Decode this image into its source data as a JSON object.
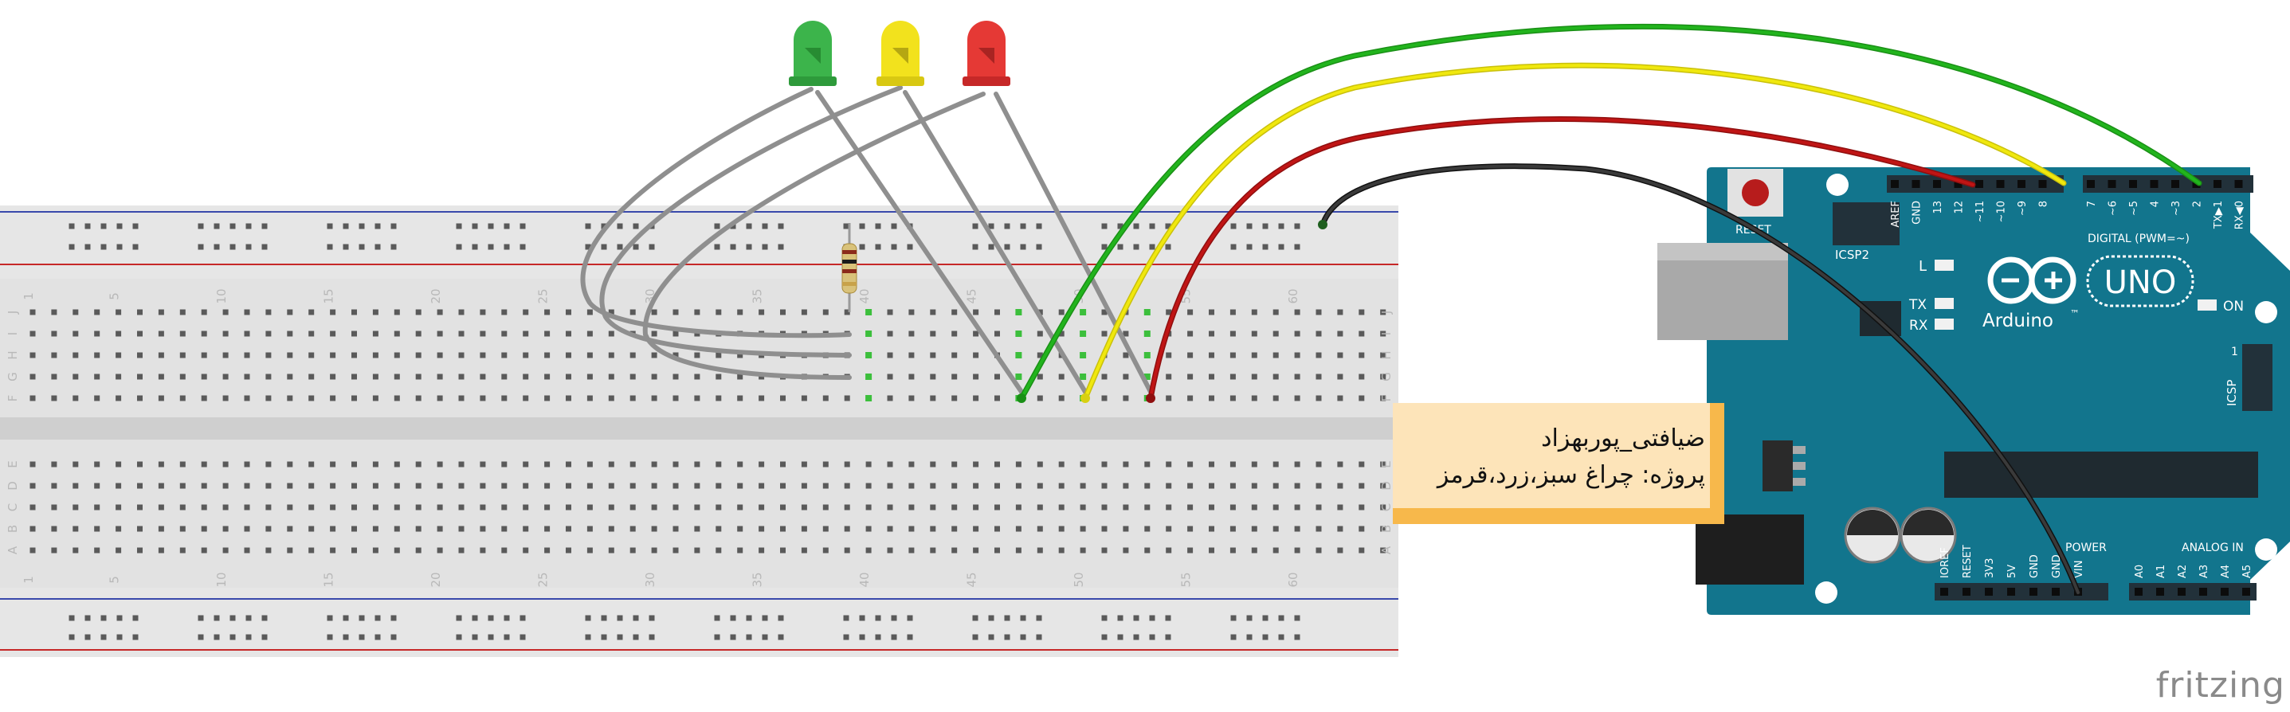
{
  "note": {
    "line1": "ضیافتی_پوربهزاد",
    "line2": "پروژه: چراغ سبز،زرد،قرمز",
    "bg": "#fde4b9",
    "accent": "#f7b84b"
  },
  "arduino": {
    "board_color": "#12758d",
    "header_color": "#22313a",
    "brand": "Arduino",
    "trademark": "™",
    "model": "UNO",
    "reset_label": "RESET",
    "icsp2_label": "ICSP2",
    "icsp_label": "ICSP",
    "led_l": "L",
    "led_tx": "TX",
    "led_rx": "RX",
    "on_label": "ON",
    "digital_label": "DIGITAL (PWM=~)",
    "power_label": "POWER",
    "analog_label": "ANALOG IN",
    "digital_pins": [
      "AREF",
      "GND",
      "13",
      "12",
      "~11",
      "~10",
      "~9",
      "8",
      "7",
      "~6",
      "~5",
      "4",
      "~3",
      "2",
      "TX▶1",
      "RX◀0"
    ],
    "power_pins": [
      "IOREF",
      "RESET",
      "3V3",
      "5V",
      "GND",
      "GND",
      "VIN"
    ],
    "analog_pins": [
      "A0",
      "A1",
      "A2",
      "A3",
      "A4",
      "A5"
    ],
    "icsp_one": "1"
  },
  "breadboard": {
    "column_numbers": [
      "1",
      "5",
      "10",
      "15",
      "20",
      "25",
      "30",
      "35",
      "40",
      "45",
      "50",
      "55",
      "60"
    ],
    "rows_top": [
      "J",
      "I",
      "H",
      "G",
      "F"
    ],
    "rows_bottom": [
      "E",
      "D",
      "C",
      "B",
      "A"
    ]
  },
  "leds": [
    {
      "name": "green-led",
      "color": "#3cb44b"
    },
    {
      "name": "yellow-led",
      "color": "#f2e21d"
    },
    {
      "name": "red-led",
      "color": "#e53935"
    }
  ],
  "wires": {
    "green": "#22b41d",
    "yellow": "#f0e80e",
    "red": "#c01515",
    "black": "#2b2b2b",
    "jumper": "#8f8f8f"
  },
  "logo": "fritzing"
}
